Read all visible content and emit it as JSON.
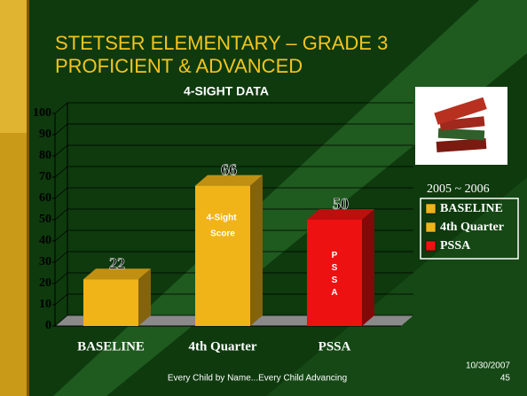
{
  "slide": {
    "title_lines": [
      "STETSER ELEMENTARY – GRADE 3",
      "PROFICIENT & ADVANCED"
    ],
    "footer": "Every Child by Name...Every Child Advancing",
    "date": "10/30/2007",
    "page_number": "45"
  },
  "chart_data": {
    "type": "bar3d",
    "title": "4-SIGHT DATA",
    "categories": [
      "BASELINE",
      "4th Quarter",
      "PSSA"
    ],
    "values": [
      22,
      66,
      50
    ],
    "colors": [
      "#f0b418",
      "#f0b418",
      "#ee1111"
    ],
    "bar_annotations": [
      null,
      "4-Sight Score",
      "PSSA"
    ],
    "legend_title": "2005 ~ 2006",
    "ylim": [
      0,
      100
    ],
    "yticks": [
      0,
      10,
      20,
      30,
      40,
      50,
      60,
      70,
      80,
      90,
      100
    ],
    "grid": true
  }
}
